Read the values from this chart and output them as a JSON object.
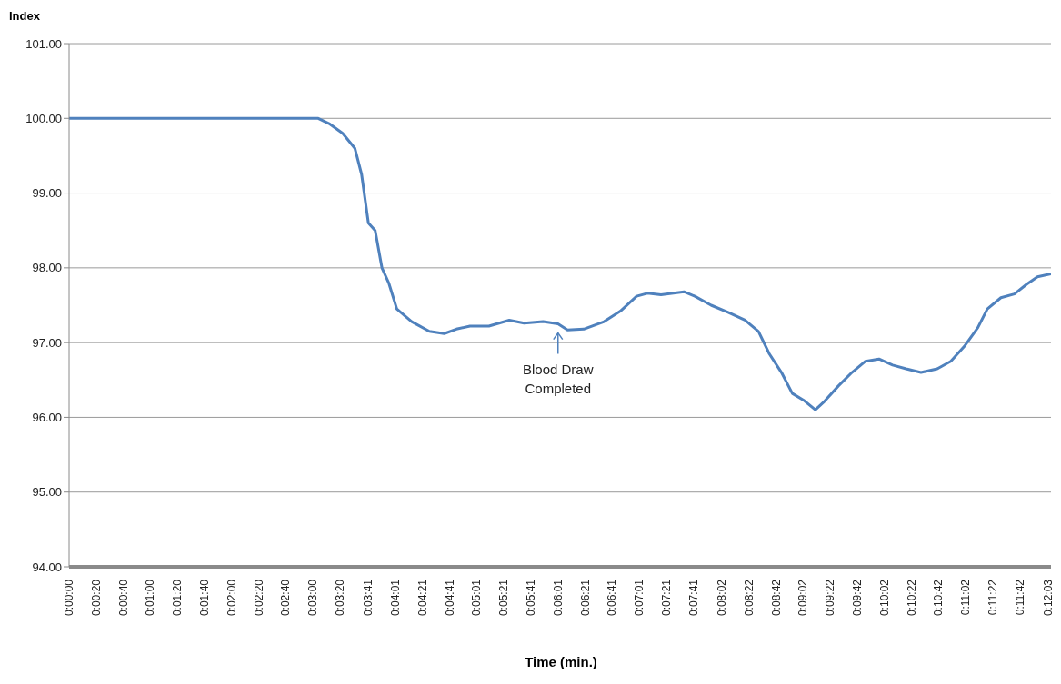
{
  "chart_data": {
    "type": "line",
    "xlabel": "Time (min.)",
    "ylabel": "Index",
    "x": [
      0,
      0.051111,
      0.053333,
      0.056111,
      0.058611,
      0.06,
      0.061389,
      0.062778,
      0.064167,
      0.065556,
      0.067222,
      0.070278,
      0.073889,
      0.076944,
      0.079444,
      0.082222,
      0.086111,
      0.090278,
      0.093333,
      0.097222,
      0.100278,
      0.102222,
      0.105556,
      0.109722,
      0.113056,
      0.116389,
      0.118611,
      0.121389,
      0.126111,
      0.128333,
      0.131667,
      0.135278,
      0.138611,
      0.141389,
      0.143611,
      0.146111,
      0.148333,
      0.150833,
      0.153056,
      0.154722,
      0.157778,
      0.160556,
      0.163333,
      0.166111,
      0.168889,
      0.171667,
      0.174722,
      0.178056,
      0.180833,
      0.183611,
      0.186389,
      0.188333,
      0.191111,
      0.193889,
      0.196389,
      0.198611,
      0.201389
    ],
    "series": [
      {
        "color": "#4f81bd",
        "values": [
          100,
          100,
          99.93,
          99.8,
          99.6,
          99.25,
          98.6,
          98.5,
          98.0,
          97.8,
          97.45,
          97.28,
          97.15,
          97.12,
          97.18,
          97.22,
          97.22,
          97.3,
          97.26,
          97.28,
          97.25,
          97.17,
          97.18,
          97.28,
          97.42,
          97.62,
          97.66,
          97.64,
          97.68,
          97.62,
          97.5,
          97.4,
          97.3,
          97.15,
          96.85,
          96.6,
          96.32,
          96.22,
          96.1,
          96.2,
          96.42,
          96.6,
          96.75,
          96.78,
          96.7,
          96.65,
          96.6,
          96.65,
          96.75,
          96.95,
          97.2,
          97.45,
          97.6,
          97.65,
          97.78,
          97.88,
          97.92
        ]
      }
    ],
    "xlim": [
      0,
      0.201389
    ],
    "xticks": [
      {
        "value": 0,
        "label": "0:00:00"
      },
      {
        "value": 0.005556,
        "label": "0:00:20"
      },
      {
        "value": 0.011111,
        "label": "0:00:40"
      },
      {
        "value": 0.016667,
        "label": "0:01:00"
      },
      {
        "value": 0.022222,
        "label": "0:01:20"
      },
      {
        "value": 0.027778,
        "label": "0:01:40"
      },
      {
        "value": 0.033333,
        "label": "0:02:00"
      },
      {
        "value": 0.038889,
        "label": "0:02:20"
      },
      {
        "value": 0.044444,
        "label": "0:02:40"
      },
      {
        "value": 0.05,
        "label": "0:03:00"
      },
      {
        "value": 0.055556,
        "label": "0:03:20"
      },
      {
        "value": 0.061389,
        "label": "0:03:41"
      },
      {
        "value": 0.066944,
        "label": "0:04:01"
      },
      {
        "value": 0.0725,
        "label": "0:04:21"
      },
      {
        "value": 0.078056,
        "label": "0:04:41"
      },
      {
        "value": 0.083611,
        "label": "0:05:01"
      },
      {
        "value": 0.089167,
        "label": "0:05:21"
      },
      {
        "value": 0.094722,
        "label": "0:05:41"
      },
      {
        "value": 0.100278,
        "label": "0:06:01"
      },
      {
        "value": 0.105833,
        "label": "0:06:21"
      },
      {
        "value": 0.111389,
        "label": "0:06:41"
      },
      {
        "value": 0.116944,
        "label": "0:07:01"
      },
      {
        "value": 0.1225,
        "label": "0:07:21"
      },
      {
        "value": 0.128056,
        "label": "0:07:41"
      },
      {
        "value": 0.133889,
        "label": "0:08:02"
      },
      {
        "value": 0.139444,
        "label": "0:08:22"
      },
      {
        "value": 0.145,
        "label": "0:08:42"
      },
      {
        "value": 0.150556,
        "label": "0:09:02"
      },
      {
        "value": 0.156111,
        "label": "0:09:22"
      },
      {
        "value": 0.161667,
        "label": "0:09:42"
      },
      {
        "value": 0.167222,
        "label": "0:10:02"
      },
      {
        "value": 0.172778,
        "label": "0:10:22"
      },
      {
        "value": 0.178333,
        "label": "0:10:42"
      },
      {
        "value": 0.183889,
        "label": "0:11:02"
      },
      {
        "value": 0.189444,
        "label": "0:11:22"
      },
      {
        "value": 0.195,
        "label": "0:11:42"
      },
      {
        "value": 0.200833,
        "label": "0:12:03"
      }
    ],
    "ylim": [
      94,
      101
    ],
    "yticks": [
      {
        "value": 94,
        "label": "94.00"
      },
      {
        "value": 95,
        "label": "95.00"
      },
      {
        "value": 96,
        "label": "96.00"
      },
      {
        "value": 97,
        "label": "97.00"
      },
      {
        "value": 98,
        "label": "98.00"
      },
      {
        "value": 99,
        "label": "99.00"
      },
      {
        "value": 100,
        "label": "100.00"
      },
      {
        "value": 101,
        "label": "101.00"
      }
    ],
    "grid": "y",
    "legend": false,
    "marker": "none",
    "line_style": "solid",
    "annotations": [
      {
        "text": "Blood Draw Completed",
        "x": 0.100278,
        "y": 97.25
      }
    ]
  }
}
